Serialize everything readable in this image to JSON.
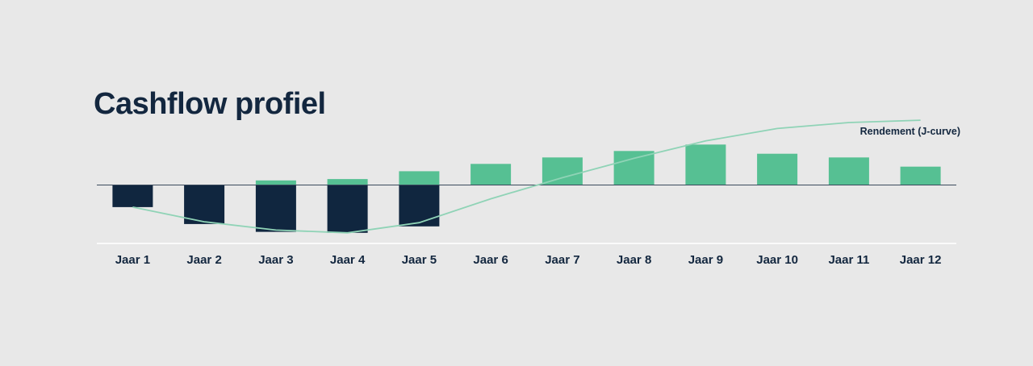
{
  "chart_data": {
    "type": "bar",
    "title": "Cashflow profiel",
    "categories": [
      "Jaar 1",
      "Jaar 2",
      "Jaar 3",
      "Jaar 4",
      "Jaar 5",
      "Jaar 6",
      "Jaar 7",
      "Jaar 8",
      "Jaar 9",
      "Jaar 10",
      "Jaar 11",
      "Jaar 12"
    ],
    "series": [
      {
        "values": [
          0,
          0,
          1.0,
          1.3,
          3.0,
          4.6,
          6.0,
          7.4,
          8.8,
          6.8,
          6.0,
          4.0
        ],
        "color": "#56c093"
      },
      {
        "values": [
          -4.8,
          -8.5,
          -10.2,
          -10.4,
          -9.0,
          0,
          0,
          0,
          0,
          0,
          0,
          0
        ],
        "color": "#10263f"
      },
      {
        "name": "Rendement (J-curve)",
        "type": "line",
        "values": [
          -4.8,
          -8.0,
          -9.8,
          -10.4,
          -8.2,
          -3.0,
          1.6,
          5.8,
          9.6,
          12.3,
          13.6,
          14.1
        ],
        "color": "#8fd3b6"
      }
    ],
    "annotation": "Rendement (J-curve)",
    "ylim": [
      -12.5,
      17
    ],
    "grid": false,
    "colors": {
      "background": "#e8e8e8",
      "positive": "#56c093",
      "negative": "#10263f",
      "line": "#8fd3b6",
      "text": "#13273f"
    }
  }
}
